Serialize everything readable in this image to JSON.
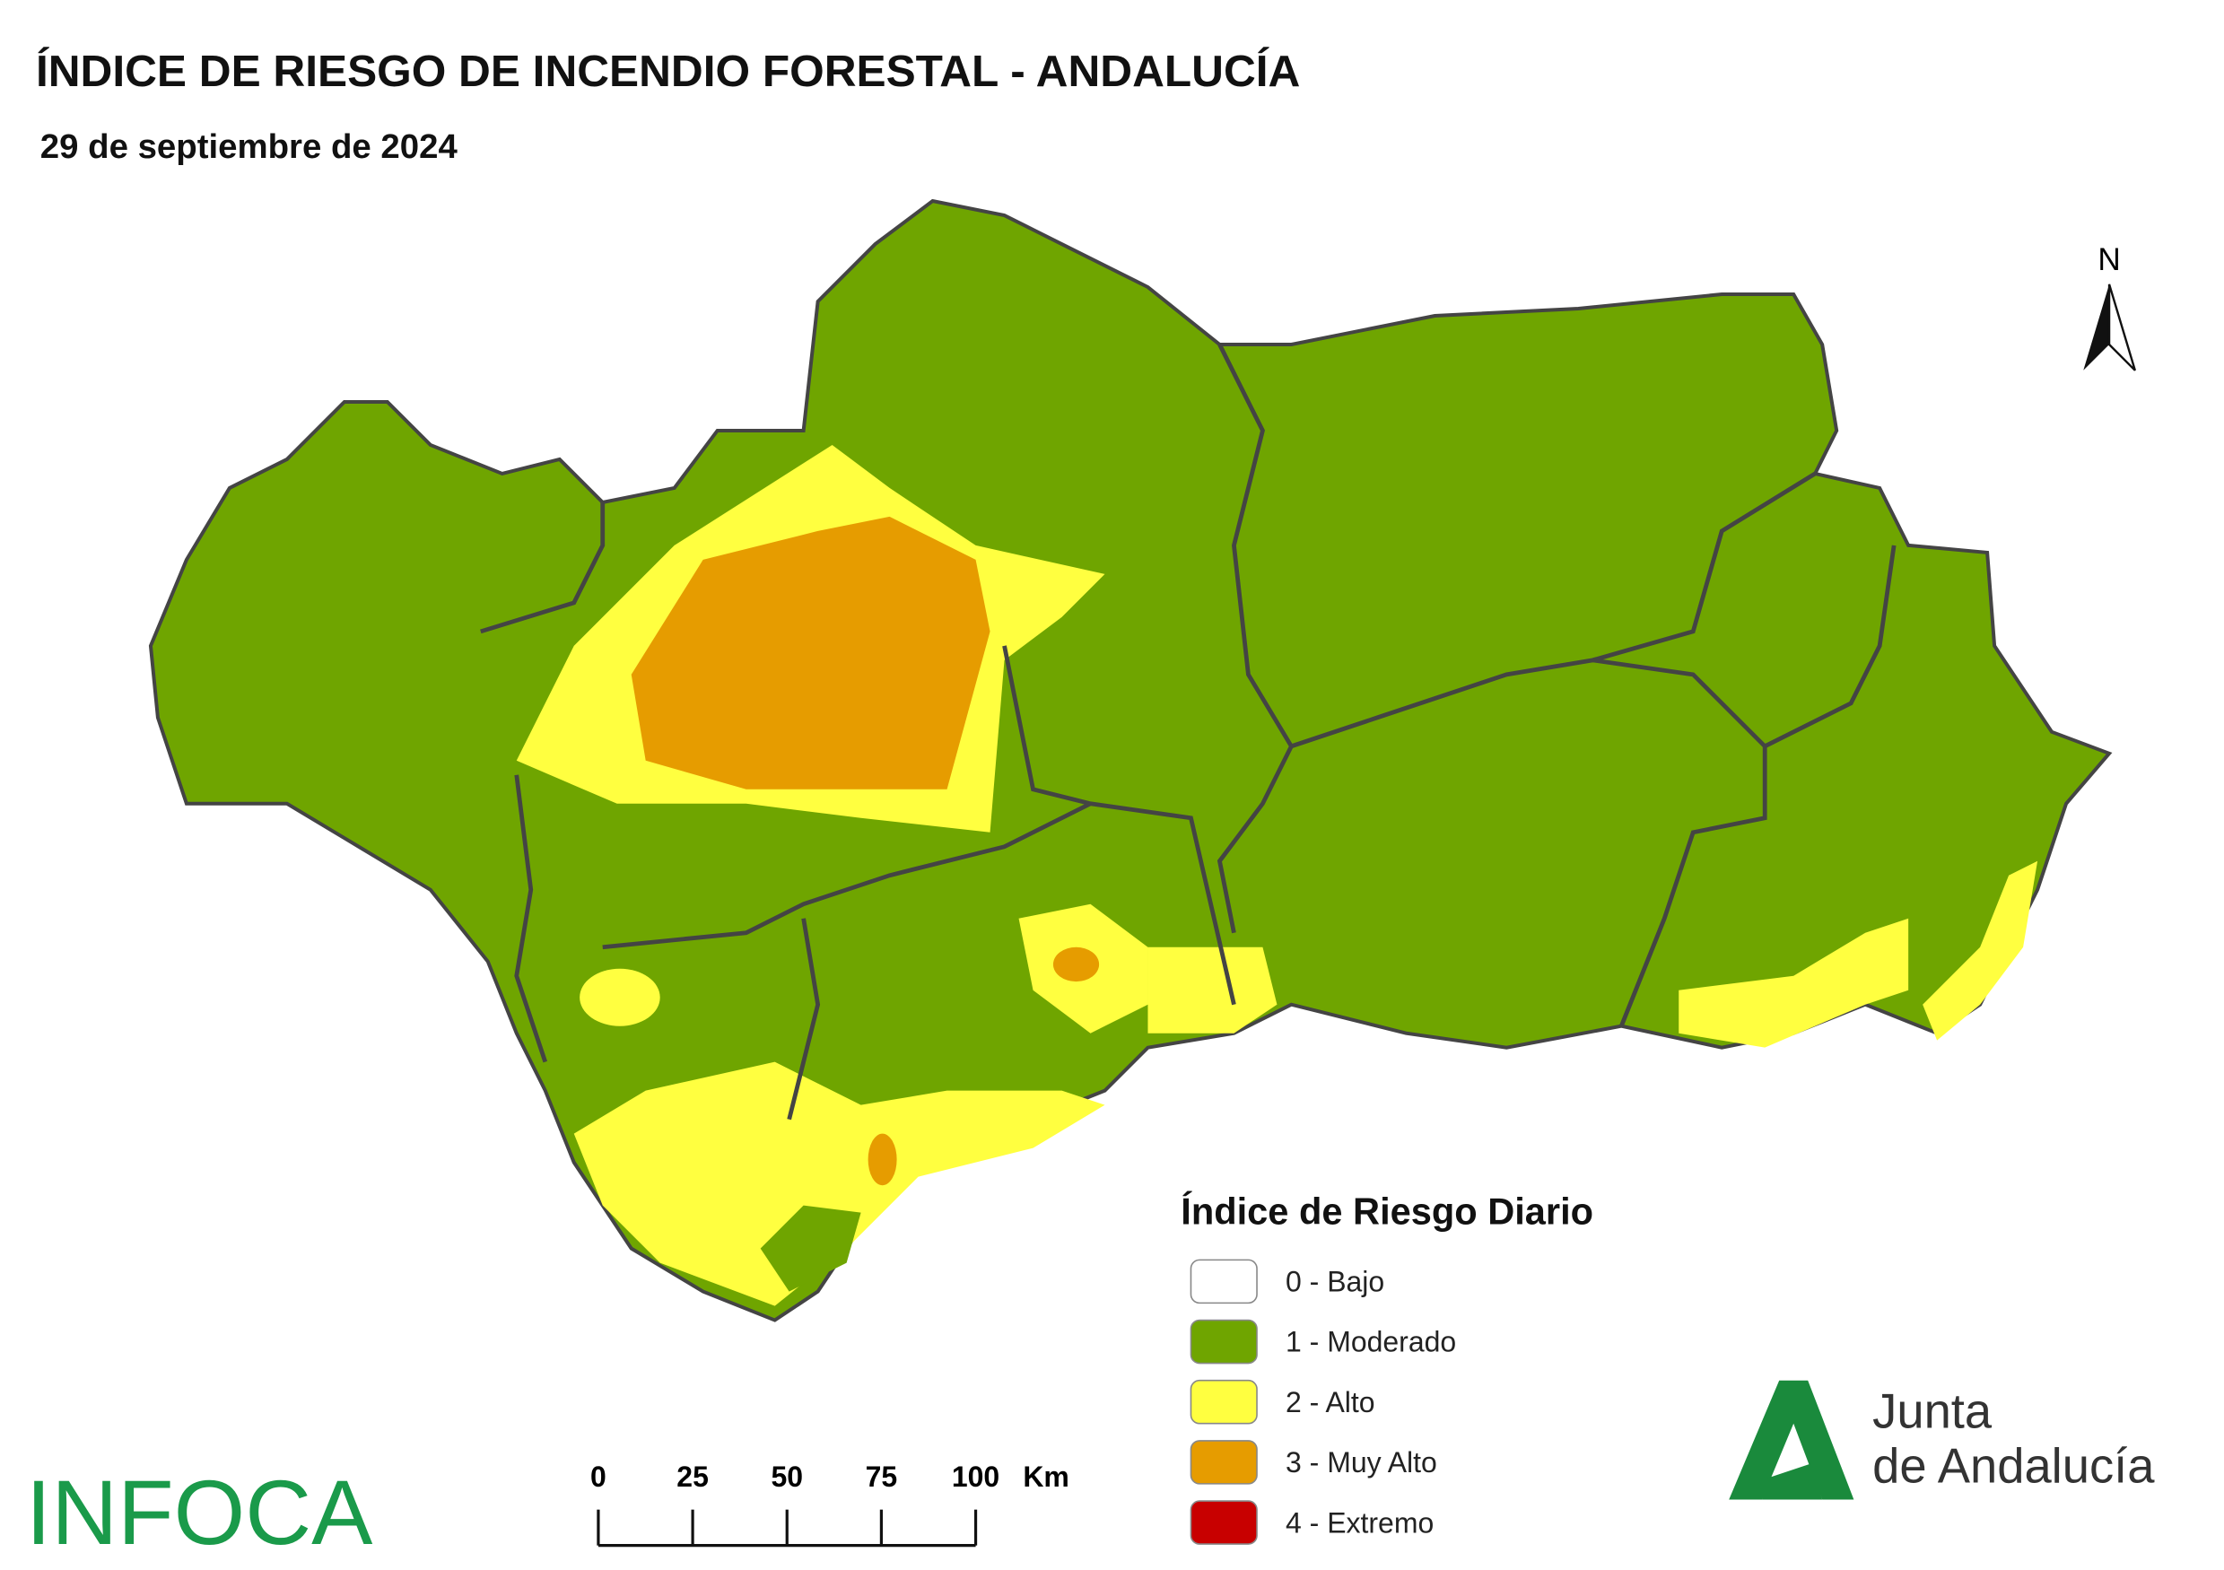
{
  "header": {
    "title": "ÍNDICE DE RIESGO DE INCENDIO FORESTAL - ANDALUCÍA",
    "subtitle": "29 de septiembre de 2024"
  },
  "north": "N",
  "legend": {
    "title": "Índice de Riesgo Diario",
    "items": [
      {
        "label": "0 - Bajo",
        "color": "#ffffff"
      },
      {
        "label": "1 - Moderado",
        "color": "#6fa500"
      },
      {
        "label": "2 - Alto",
        "color": "#ffff40"
      },
      {
        "label": "3 - Muy Alto",
        "color": "#e69c00"
      },
      {
        "label": "4 - Extremo",
        "color": "#c80000"
      }
    ]
  },
  "scale": {
    "ticks": [
      0,
      25,
      50,
      75,
      100
    ],
    "unit": "Km"
  },
  "logos": {
    "infoca": "INFOCA",
    "junta": [
      "Junta",
      "de Andalucía"
    ]
  }
}
